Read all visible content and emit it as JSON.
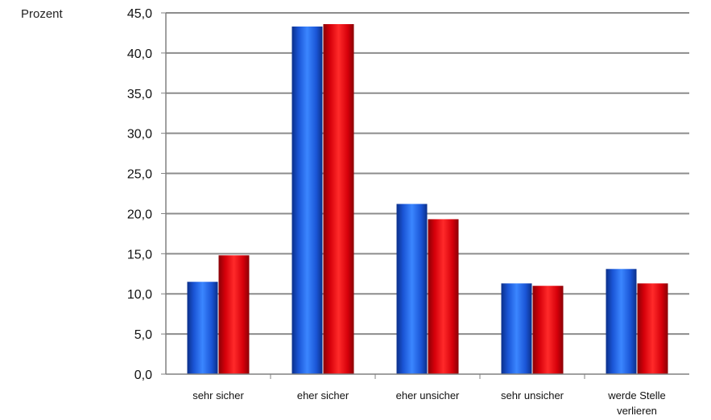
{
  "chart_data": {
    "type": "bar",
    "ylabel": "Prozent",
    "categories": [
      [
        "sehr sicher"
      ],
      [
        "eher sicher"
      ],
      [
        "eher unsicher"
      ],
      [
        "sehr unsicher"
      ],
      [
        "werde Stelle",
        "verlieren"
      ]
    ],
    "series": [
      {
        "values": [
          11.5,
          43.3,
          21.2,
          11.3,
          13.1
        ],
        "color": "#1f5fe0"
      },
      {
        "values": [
          14.8,
          43.6,
          19.3,
          11.0,
          11.3
        ],
        "color": "#e8000c"
      }
    ],
    "ylim": [
      0,
      45
    ],
    "yticks": [
      "0,0",
      "5,0",
      "10,0",
      "15,0",
      "20,0",
      "25,0",
      "30,0",
      "35,0",
      "40,0",
      "45,0"
    ],
    "grid": true,
    "legend": "none"
  }
}
